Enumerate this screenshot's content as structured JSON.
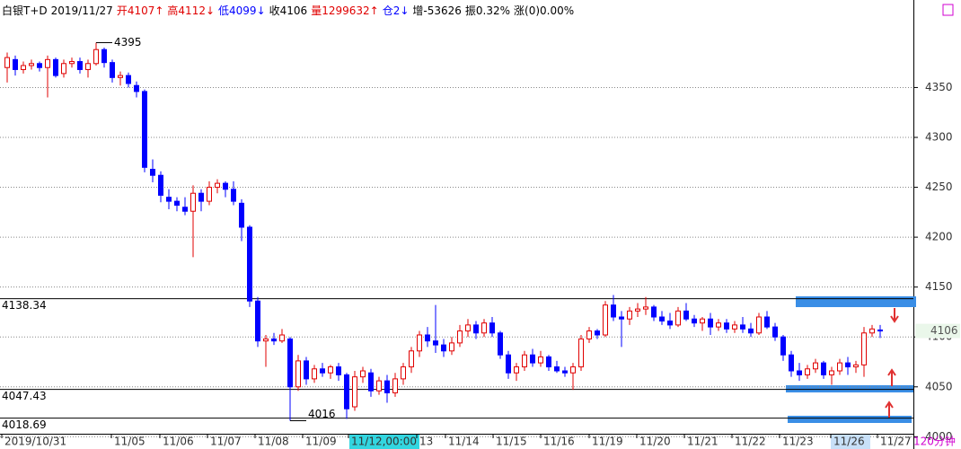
{
  "chart_data": {
    "type": "candlestick",
    "header": [
      "白银T+D",
      "2019/11/27",
      "开4107↑",
      "高4112↓",
      "低4099↓",
      "收4106",
      "量1299632↑",
      "仓2↓",
      "增-53626",
      "振0.32%",
      "涨(0)0.00%"
    ],
    "ohlc": [
      [
        4370,
        4385,
        4355,
        4380
      ],
      [
        4378,
        4382,
        4362,
        4368
      ],
      [
        4368,
        4376,
        4364,
        4372
      ],
      [
        4372,
        4378,
        4368,
        4374
      ],
      [
        4374,
        4376,
        4366,
        4370
      ],
      [
        4370,
        4382,
        4340,
        4378
      ],
      [
        4378,
        4380,
        4360,
        4362
      ],
      [
        4364,
        4378,
        4360,
        4374
      ],
      [
        4374,
        4380,
        4370,
        4376
      ],
      [
        4376,
        4380,
        4364,
        4368
      ],
      [
        4368,
        4378,
        4360,
        4374
      ],
      [
        4374,
        4395,
        4372,
        4388
      ],
      [
        4388,
        4390,
        4370,
        4375
      ],
      [
        4375,
        4378,
        4355,
        4360
      ],
      [
        4360,
        4366,
        4352,
        4362
      ],
      [
        4362,
        4365,
        4350,
        4354
      ],
      [
        4352,
        4356,
        4340,
        4346
      ],
      [
        4346,
        4348,
        4265,
        4270
      ],
      [
        4268,
        4278,
        4255,
        4262
      ],
      [
        4262,
        4266,
        4235,
        4242
      ],
      [
        4240,
        4248,
        4228,
        4236
      ],
      [
        4236,
        4240,
        4226,
        4232
      ],
      [
        4230,
        4240,
        4222,
        4226
      ],
      [
        4226,
        4252,
        4180,
        4244
      ],
      [
        4244,
        4248,
        4226,
        4236
      ],
      [
        4236,
        4256,
        4232,
        4250
      ],
      [
        4250,
        4258,
        4244,
        4254
      ],
      [
        4254,
        4256,
        4240,
        4248
      ],
      [
        4248,
        4256,
        4232,
        4236
      ],
      [
        4234,
        4238,
        4196,
        4210
      ],
      [
        4210,
        4212,
        4130,
        4136
      ],
      [
        4136,
        4140,
        4090,
        4096
      ],
      [
        4096,
        4102,
        4070,
        4098
      ],
      [
        4098,
        4104,
        4092,
        4096
      ],
      [
        4096,
        4108,
        4094,
        4102
      ],
      [
        4098,
        4100,
        4016,
        4050
      ],
      [
        4050,
        4082,
        4046,
        4076
      ],
      [
        4076,
        4080,
        4052,
        4058
      ],
      [
        4058,
        4072,
        4054,
        4068
      ],
      [
        4068,
        4074,
        4060,
        4064
      ],
      [
        4064,
        4072,
        4058,
        4070
      ],
      [
        4070,
        4074,
        4056,
        4062
      ],
      [
        4062,
        4064,
        4018,
        4028
      ],
      [
        4030,
        4066,
        4026,
        4060
      ],
      [
        4060,
        4070,
        4054,
        4066
      ],
      [
        4064,
        4068,
        4040,
        4046
      ],
      [
        4046,
        4060,
        4042,
        4056
      ],
      [
        4056,
        4062,
        4034,
        4044
      ],
      [
        4044,
        4064,
        4040,
        4058
      ],
      [
        4058,
        4074,
        4052,
        4070
      ],
      [
        4070,
        4090,
        4064,
        4086
      ],
      [
        4086,
        4106,
        4080,
        4102
      ],
      [
        4102,
        4110,
        4090,
        4096
      ],
      [
        4096,
        4132,
        4084,
        4092
      ],
      [
        4092,
        4098,
        4080,
        4086
      ],
      [
        4086,
        4100,
        4082,
        4094
      ],
      [
        4094,
        4112,
        4090,
        4106
      ],
      [
        4106,
        4118,
        4100,
        4112
      ],
      [
        4112,
        4116,
        4098,
        4104
      ],
      [
        4104,
        4118,
        4100,
        4114
      ],
      [
        4114,
        4120,
        4100,
        4104
      ],
      [
        4104,
        4106,
        4078,
        4082
      ],
      [
        4082,
        4086,
        4058,
        4064
      ],
      [
        4064,
        4074,
        4056,
        4070
      ],
      [
        4070,
        4086,
        4066,
        4082
      ],
      [
        4082,
        4088,
        4070,
        4074
      ],
      [
        4074,
        4086,
        4070,
        4080
      ],
      [
        4080,
        4082,
        4066,
        4070
      ],
      [
        4070,
        4076,
        4064,
        4066
      ],
      [
        4066,
        4070,
        4060,
        4064
      ],
      [
        4064,
        4074,
        4047,
        4070
      ],
      [
        4070,
        4102,
        4066,
        4098
      ],
      [
        4098,
        4110,
        4094,
        4106
      ],
      [
        4106,
        4108,
        4098,
        4102
      ],
      [
        4102,
        4136,
        4100,
        4132
      ],
      [
        4132,
        4142,
        4116,
        4120
      ],
      [
        4120,
        4126,
        4090,
        4118
      ],
      [
        4118,
        4130,
        4112,
        4126
      ],
      [
        4126,
        4134,
        4120,
        4128
      ],
      [
        4128,
        4140,
        4122,
        4130
      ],
      [
        4130,
        4132,
        4116,
        4120
      ],
      [
        4120,
        4126,
        4112,
        4116
      ],
      [
        4116,
        4124,
        4108,
        4112
      ],
      [
        4112,
        4130,
        4110,
        4126
      ],
      [
        4126,
        4134,
        4116,
        4118
      ],
      [
        4118,
        4122,
        4110,
        4114
      ],
      [
        4114,
        4120,
        4106,
        4118
      ],
      [
        4118,
        4124,
        4102,
        4110
      ],
      [
        4110,
        4118,
        4106,
        4114
      ],
      [
        4114,
        4118,
        4104,
        4108
      ],
      [
        4108,
        4116,
        4104,
        4112
      ],
      [
        4112,
        4120,
        4104,
        4108
      ],
      [
        4108,
        4114,
        4100,
        4104
      ],
      [
        4104,
        4124,
        4102,
        4120
      ],
      [
        4120,
        4126,
        4108,
        4110
      ],
      [
        4110,
        4114,
        4096,
        4100
      ],
      [
        4100,
        4102,
        4076,
        4082
      ],
      [
        4082,
        4086,
        4060,
        4066
      ],
      [
        4066,
        4074,
        4056,
        4062
      ],
      [
        4062,
        4072,
        4058,
        4068
      ],
      [
        4068,
        4078,
        4064,
        4074
      ],
      [
        4074,
        4076,
        4058,
        4062
      ],
      [
        4062,
        4070,
        4052,
        4066
      ],
      [
        4066,
        4078,
        4062,
        4074
      ],
      [
        4074,
        4080,
        4062,
        4070
      ],
      [
        4070,
        4076,
        4064,
        4072
      ],
      [
        4072,
        4110,
        4060,
        4104
      ],
      [
        4104,
        4112,
        4100,
        4108
      ],
      [
        4107,
        4112,
        4099,
        4106
      ]
    ],
    "x_labels": [
      "2019/10/31",
      "11/05",
      "11/06",
      "11/07",
      "11/08",
      "11/09",
      "11/12,00:00",
      "13",
      "11/14",
      "11/15",
      "11/16",
      "11/19",
      "11/20",
      "11/21",
      "11/22",
      "11/23",
      "11/26",
      "11/27"
    ],
    "period": "120分钟",
    "ylim": [
      4003,
      4417
    ],
    "yticks": [
      4000,
      4050,
      4100,
      4150,
      4200,
      4250,
      4300,
      4350
    ],
    "grid": true,
    "levels": [
      4138.34,
      4047.43,
      4018.69
    ],
    "high_mark": 4395,
    "low_mark": 4016,
    "last_price": 4106,
    "up_color": "#e00000",
    "down_color": "#0000ff"
  }
}
